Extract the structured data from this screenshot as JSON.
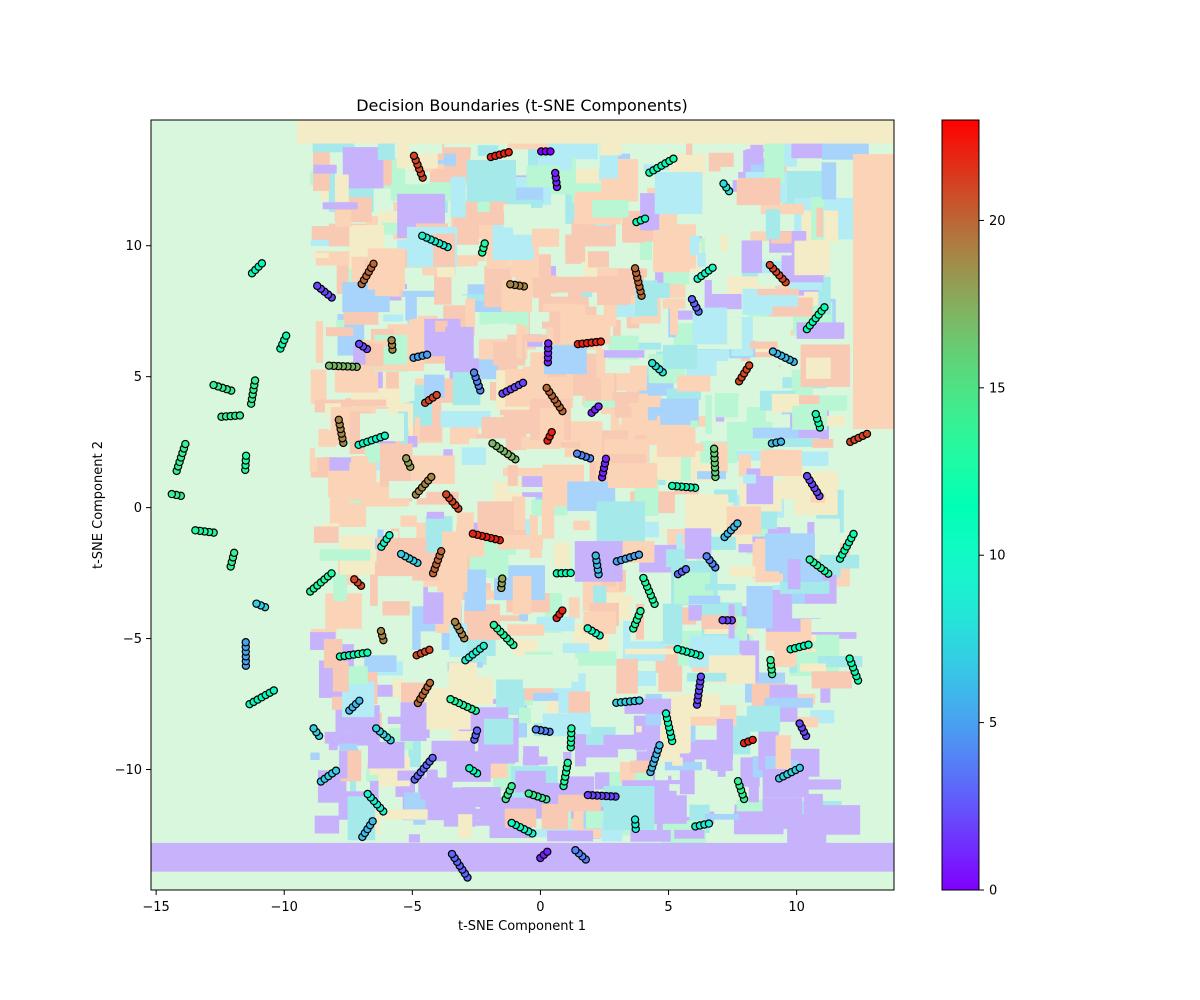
{
  "chart_data": {
    "type": "scatter",
    "title": "Decision Boundaries (t-SNE Components)",
    "xlabel": "t-SNE Component 1",
    "ylabel": "t-SNE Component 2",
    "xlim": [
      -15.2,
      13.8
    ],
    "ylim": [
      -14.6,
      14.8
    ],
    "x_ticks": [
      -15,
      -10,
      -5,
      0,
      5,
      10
    ],
    "y_ticks": [
      -10,
      -5,
      0,
      5,
      10
    ],
    "colorbar": {
      "colormap": "rainbow",
      "range": [
        0,
        23
      ],
      "ticks": [
        0,
        5,
        10,
        15,
        20
      ]
    },
    "background": "decision boundary regions (contourf, alpha 0.4)",
    "marker_edge_color": "#000000",
    "clusters": [
      {
        "x": 0.3,
        "y": 13.6,
        "class": 0
      },
      {
        "x": 0.6,
        "y": 12.6,
        "class": 1
      },
      {
        "x": -1.5,
        "y": 13.5,
        "class": 22
      },
      {
        "x": -4.8,
        "y": 13.1,
        "class": 21
      },
      {
        "x": 4.8,
        "y": 13.1,
        "class": 12
      },
      {
        "x": 7.2,
        "y": 12.3,
        "class": 8
      },
      {
        "x": -11.0,
        "y": 9.2,
        "class": 11
      },
      {
        "x": -8.5,
        "y": 8.3,
        "class": 2
      },
      {
        "x": -6.7,
        "y": 9.0,
        "class": 20
      },
      {
        "x": -4.2,
        "y": 10.2,
        "class": 9
      },
      {
        "x": -2.2,
        "y": 10.0,
        "class": 13
      },
      {
        "x": -1.0,
        "y": 8.5,
        "class": 19
      },
      {
        "x": 0.3,
        "y": 6.0,
        "class": 1
      },
      {
        "x": 2.0,
        "y": 6.3,
        "class": 22
      },
      {
        "x": 3.8,
        "y": 8.7,
        "class": 20
      },
      {
        "x": 4.0,
        "y": 11.0,
        "class": 11
      },
      {
        "x": 6.0,
        "y": 7.8,
        "class": 3
      },
      {
        "x": 6.5,
        "y": 9.0,
        "class": 10
      },
      {
        "x": 9.2,
        "y": 9.0,
        "class": 21
      },
      {
        "x": 10.8,
        "y": 7.3,
        "class": 12
      },
      {
        "x": -7.0,
        "y": 6.2,
        "class": 2
      },
      {
        "x": -10.0,
        "y": 6.4,
        "class": 12
      },
      {
        "x": -12.5,
        "y": 4.6,
        "class": 14
      },
      {
        "x": -11.2,
        "y": 4.5,
        "class": 14
      },
      {
        "x": -7.8,
        "y": 5.4,
        "class": 17
      },
      {
        "x": -5.8,
        "y": 6.3,
        "class": 19
      },
      {
        "x": -4.6,
        "y": 5.8,
        "class": 5
      },
      {
        "x": -2.5,
        "y": 4.9,
        "class": 4
      },
      {
        "x": -1.0,
        "y": 4.6,
        "class": 2
      },
      {
        "x": 0.5,
        "y": 4.2,
        "class": 20
      },
      {
        "x": 2.2,
        "y": 3.8,
        "class": 1
      },
      {
        "x": 4.5,
        "y": 5.4,
        "class": 8
      },
      {
        "x": 8.0,
        "y": 5.2,
        "class": 21
      },
      {
        "x": 9.4,
        "y": 5.8,
        "class": 6
      },
      {
        "x": -14.0,
        "y": 2.0,
        "class": 14
      },
      {
        "x": -14.3,
        "y": 0.5,
        "class": 14
      },
      {
        "x": -11.5,
        "y": 1.8,
        "class": 13
      },
      {
        "x": -12.0,
        "y": 3.5,
        "class": 14
      },
      {
        "x": -7.8,
        "y": 3.0,
        "class": 19
      },
      {
        "x": -6.5,
        "y": 2.6,
        "class": 10
      },
      {
        "x": -5.2,
        "y": 1.8,
        "class": 18
      },
      {
        "x": -4.2,
        "y": 4.2,
        "class": 21
      },
      {
        "x": -3.5,
        "y": 0.3,
        "class": 21
      },
      {
        "x": -4.5,
        "y": 0.9,
        "class": 19
      },
      {
        "x": -1.5,
        "y": 2.2,
        "class": 17
      },
      {
        "x": 0.4,
        "y": 2.8,
        "class": 22
      },
      {
        "x": 1.6,
        "y": 2.0,
        "class": 4
      },
      {
        "x": 2.5,
        "y": 1.6,
        "class": 1
      },
      {
        "x": 5.5,
        "y": 0.8,
        "class": 12
      },
      {
        "x": 6.8,
        "y": 1.8,
        "class": 16
      },
      {
        "x": 9.3,
        "y": 2.5,
        "class": 6
      },
      {
        "x": 10.8,
        "y": 3.4,
        "class": 12
      },
      {
        "x": 12.5,
        "y": 2.7,
        "class": 21
      },
      {
        "x": 10.6,
        "y": 0.9,
        "class": 2
      },
      {
        "x": -8.5,
        "y": -2.8,
        "class": 13
      },
      {
        "x": -7.2,
        "y": -2.8,
        "class": 21
      },
      {
        "x": -6.0,
        "y": -1.2,
        "class": 10
      },
      {
        "x": -5.2,
        "y": -1.9,
        "class": 7
      },
      {
        "x": -4.0,
        "y": -2.0,
        "class": 20
      },
      {
        "x": -2.2,
        "y": -1.1,
        "class": 22
      },
      {
        "x": -1.5,
        "y": -2.8,
        "class": 18
      },
      {
        "x": 1.0,
        "y": -2.5,
        "class": 12
      },
      {
        "x": 2.2,
        "y": -2.1,
        "class": 6
      },
      {
        "x": 3.5,
        "y": -1.9,
        "class": 5
      },
      {
        "x": 4.2,
        "y": -3.1,
        "class": 13
      },
      {
        "x": 5.6,
        "y": -2.4,
        "class": 3
      },
      {
        "x": 6.6,
        "y": -2.0,
        "class": 4
      },
      {
        "x": 7.5,
        "y": -0.8,
        "class": 6
      },
      {
        "x": 10.8,
        "y": -2.2,
        "class": 13
      },
      {
        "x": 12.0,
        "y": -1.4,
        "class": 12
      },
      {
        "x": -11.0,
        "y": -3.7,
        "class": 7
      },
      {
        "x": -12.0,
        "y": -1.9,
        "class": 14
      },
      {
        "x": -13.2,
        "y": -0.9,
        "class": 13
      },
      {
        "x": -11.5,
        "y": -5.5,
        "class": 5
      },
      {
        "x": -7.2,
        "y": -5.6,
        "class": 12
      },
      {
        "x": -6.2,
        "y": -4.8,
        "class": 19
      },
      {
        "x": -4.5,
        "y": -5.5,
        "class": 21
      },
      {
        "x": -3.2,
        "y": -4.6,
        "class": 19
      },
      {
        "x": -2.5,
        "y": -5.5,
        "class": 9
      },
      {
        "x": -1.5,
        "y": -4.8,
        "class": 13
      },
      {
        "x": 0.8,
        "y": -4.0,
        "class": 22
      },
      {
        "x": 2.0,
        "y": -4.7,
        "class": 10
      },
      {
        "x": 3.8,
        "y": -4.2,
        "class": 13
      },
      {
        "x": 5.7,
        "y": -5.5,
        "class": 11
      },
      {
        "x": 6.2,
        "y": -6.9,
        "class": 2
      },
      {
        "x": 7.2,
        "y": -4.3,
        "class": 2
      },
      {
        "x": 9.0,
        "y": -6.0,
        "class": 14
      },
      {
        "x": 10.2,
        "y": -5.3,
        "class": 11
      },
      {
        "x": 12.2,
        "y": -6.1,
        "class": 12
      },
      {
        "x": -10.8,
        "y": -7.2,
        "class": 11
      },
      {
        "x": -8.8,
        "y": -8.5,
        "class": 7
      },
      {
        "x": -7.2,
        "y": -7.5,
        "class": 6
      },
      {
        "x": -6.2,
        "y": -8.6,
        "class": 7
      },
      {
        "x": -4.5,
        "y": -7.0,
        "class": 20
      },
      {
        "x": -3.1,
        "y": -7.5,
        "class": 13
      },
      {
        "x": -2.5,
        "y": -8.6,
        "class": 3
      },
      {
        "x": 0.0,
        "y": -8.5,
        "class": 4
      },
      {
        "x": 1.2,
        "y": -8.7,
        "class": 13
      },
      {
        "x": 3.5,
        "y": -7.4,
        "class": 7
      },
      {
        "x": 5.0,
        "y": -8.3,
        "class": 11
      },
      {
        "x": 8.2,
        "y": -8.9,
        "class": 22
      },
      {
        "x": 10.2,
        "y": -8.4,
        "class": 2
      },
      {
        "x": -8.2,
        "y": -10.2,
        "class": 7
      },
      {
        "x": -6.5,
        "y": -11.2,
        "class": 9
      },
      {
        "x": -4.5,
        "y": -9.9,
        "class": 3
      },
      {
        "x": -2.7,
        "y": -10.0,
        "class": 11
      },
      {
        "x": -1.2,
        "y": -10.8,
        "class": 14
      },
      {
        "x": -0.2,
        "y": -11.0,
        "class": 14
      },
      {
        "x": 1.0,
        "y": -10.1,
        "class": 13
      },
      {
        "x": 2.3,
        "y": -11.0,
        "class": 2
      },
      {
        "x": 3.7,
        "y": -12.0,
        "class": 9
      },
      {
        "x": 6.4,
        "y": -12.1,
        "class": 9
      },
      {
        "x": 7.8,
        "y": -10.7,
        "class": 14
      },
      {
        "x": 9.8,
        "y": -10.1,
        "class": 7
      },
      {
        "x": -3.2,
        "y": -13.6,
        "class": 3
      },
      {
        "x": 0.2,
        "y": -13.2,
        "class": 1
      },
      {
        "x": 1.5,
        "y": -13.2,
        "class": 4
      },
      {
        "x": -6.7,
        "y": -12.2,
        "class": 6
      },
      {
        "x": -0.8,
        "y": -12.2,
        "class": 10
      },
      {
        "x": 4.5,
        "y": -9.5,
        "class": 6
      }
    ]
  }
}
